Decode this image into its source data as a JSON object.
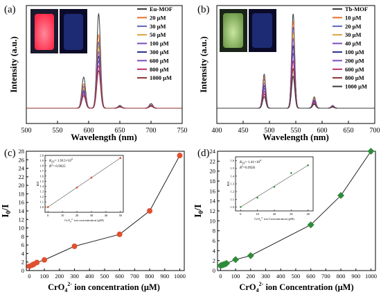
{
  "figure": {
    "panels": [
      "(a)",
      "(b)",
      "(c)",
      "(d)"
    ]
  },
  "colors": {
    "pl_series": [
      "#3a3a3a",
      "#e8702a",
      "#5a63b8",
      "#d9a441",
      "#7a4bbd",
      "#2f2f8a",
      "#7a4bbd",
      "#b8306a",
      "#8b2d2d"
    ],
    "c_marker": "#e05030",
    "d_marker": "#2e8b3a",
    "line": "#222222"
  },
  "chart_data": [
    {
      "panel": "(a)",
      "type": "line",
      "xlabel": "Wavelength (nm)",
      "ylabel": "Intensity (a.u.)",
      "xlim": [
        500,
        750
      ],
      "x_ticks": [
        "500",
        "550",
        "600",
        "650",
        "700",
        "750"
      ],
      "legend_placement": "top-right",
      "peaks_nm": [
        592,
        616,
        650,
        700
      ],
      "peak_shape_relative": [
        0.33,
        1.0,
        0.03,
        0.05
      ],
      "series": [
        {
          "name": "Eu-MOF",
          "peak": 1.0
        },
        {
          "name": "20 μM",
          "peak": 0.78
        },
        {
          "name": "30 μM",
          "peak": 0.7
        },
        {
          "name": "50 μM",
          "peak": 0.65
        },
        {
          "name": "100 μM",
          "peak": 0.6
        },
        {
          "name": "300 μM",
          "peak": 0.55
        },
        {
          "name": "600 μM",
          "peak": 0.5
        },
        {
          "name": "800 μM",
          "peak": 0.45
        },
        {
          "name": "1000 μM",
          "peak": 0.4
        }
      ]
    },
    {
      "panel": "(b)",
      "type": "line",
      "xlabel": "Wavelength (nm)",
      "ylabel": "Intensity (a.u.)",
      "xlim": [
        400,
        700
      ],
      "x_ticks": [
        "400",
        "450",
        "500",
        "550",
        "600",
        "650",
        "700"
      ],
      "legend_placement": "top-right",
      "peaks_nm": [
        490,
        545,
        585,
        620
      ],
      "peak_shape_relative": [
        0.36,
        1.0,
        0.12,
        0.03
      ],
      "series": [
        {
          "name": "Tb-MOF",
          "peak": 1.0
        },
        {
          "name": "10 μM",
          "peak": 0.92
        },
        {
          "name": "20 μM",
          "peak": 0.86
        },
        {
          "name": "30 μM",
          "peak": 0.8
        },
        {
          "name": "40 μM",
          "peak": 0.74
        },
        {
          "name": "100 μM",
          "peak": 0.66
        },
        {
          "name": "200 μM",
          "peak": 0.58
        },
        {
          "name": "600 μM",
          "peak": 0.5
        },
        {
          "name": "800 μM",
          "peak": 0.42
        },
        {
          "name": "1000 μM",
          "peak": 0.34
        }
      ]
    },
    {
      "panel": "(c)",
      "type": "scatter",
      "xlabel_main": "CrO",
      "xlabel_sub": "4",
      "xlabel_sup": "2-",
      "xlabel_rest": " ion concentration (μM)",
      "ylabel": "I",
      "ylabel_sub": "0",
      "ylabel_rest": "/I",
      "xlim": [
        -20,
        1030
      ],
      "ylim": [
        0,
        28
      ],
      "x_ticks": [
        "0",
        "100",
        "200",
        "300",
        "400",
        "500",
        "600",
        "700",
        "800",
        "900",
        "1000"
      ],
      "y_ticks": [
        "0",
        "2",
        "4",
        "6",
        "8",
        "10",
        "12",
        "14",
        "16",
        "18",
        "20",
        "22",
        "24",
        "26",
        "28"
      ],
      "x": [
        0,
        20,
        30,
        50,
        100,
        300,
        600,
        800,
        1000
      ],
      "y": [
        1.0,
        1.3,
        1.5,
        1.9,
        2.5,
        5.7,
        8.5,
        14.0,
        27.0
      ],
      "inset": {
        "ylabel": "I0/I",
        "xlabel_main": "CrO",
        "xlabel_sub": "4",
        "xlabel_sup": "2-",
        "xlabel_rest": " ion concentration (μM)",
        "ksv_main": "K",
        "ksv_sub": "SV",
        "ksv_rest": "= 1.915×10",
        "ksv_sup": "4",
        "r2_main": "R",
        "r2_sup": "2",
        "r2_rest": "= 0.9925",
        "xlim": [
          -2,
          52
        ],
        "ylim": [
          0.9,
          2.0
        ],
        "x_ticks": [
          "0",
          "10",
          "20",
          "30",
          "40",
          "50"
        ],
        "y_ticks": [
          "1.0",
          "1.1",
          "1.2",
          "1.3",
          "1.4",
          "1.5",
          "1.6",
          "1.7",
          "1.8",
          "1.9",
          "2.0"
        ],
        "x": [
          0,
          20,
          30,
          50
        ],
        "y": [
          1.0,
          1.38,
          1.57,
          1.95
        ]
      }
    },
    {
      "panel": "(d)",
      "type": "scatter",
      "xlabel_main": "CrO",
      "xlabel_sub": "4",
      "xlabel_sup": "2-",
      "xlabel_rest": " ion Concentration (μM)",
      "ylabel": "I",
      "ylabel_sub": "0",
      "ylabel_rest": "/I",
      "xlim": [
        -20,
        1030
      ],
      "ylim": [
        0,
        24
      ],
      "x_ticks": [
        "0",
        "100",
        "200",
        "300",
        "400",
        "500",
        "600",
        "700",
        "800",
        "900",
        "1000"
      ],
      "y_ticks": [
        "0",
        "2",
        "4",
        "6",
        "8",
        "10",
        "12",
        "14",
        "16",
        "18",
        "20",
        "22",
        "24"
      ],
      "x": [
        0,
        10,
        20,
        30,
        40,
        100,
        200,
        600,
        800,
        1000
      ],
      "y": [
        1.0,
        1.1,
        1.2,
        1.3,
        1.45,
        2.2,
        3.0,
        9.2,
        15.1,
        24.0
      ],
      "inset": {
        "ylabel": "I0/I",
        "xlabel_main": "CrO",
        "xlabel_sub": "4",
        "xlabel_sup": "2-",
        "xlabel_rest": " ion Concentration (μM)",
        "ksv_main": "K",
        "ksv_sub": "SV",
        "ksv_rest": "= 1.41×10",
        "ksv_sup": "4",
        "r2_main": "R",
        "r2_sup": "2",
        "r2_rest": "=0.9926",
        "xlim": [
          -3,
          43
        ],
        "ylim": [
          0.95,
          1.65
        ],
        "x_ticks": [
          "0",
          "10",
          "20",
          "30",
          "40"
        ],
        "y_ticks": [
          "1.0",
          "1.1",
          "1.2",
          "1.3",
          "1.4",
          "1.5",
          "1.6"
        ],
        "x": [
          0,
          10,
          20,
          30,
          40
        ],
        "y": [
          1.0,
          1.12,
          1.26,
          1.44,
          1.54
        ]
      }
    }
  ]
}
